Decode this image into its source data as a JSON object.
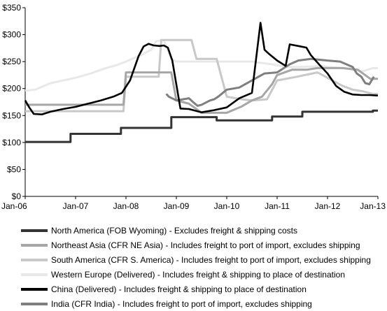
{
  "chart_data": {
    "type": "line",
    "title": "",
    "xlabel": "",
    "ylabel": "",
    "x_ticks": [
      "Jan-06",
      "Jan-07",
      "Jan-08",
      "Jan-09",
      "Jan-10",
      "Jan-11",
      "Jan-12",
      "Jan-13"
    ],
    "y_ticks": [
      "$0",
      "$50",
      "$100",
      "$150",
      "$200",
      "$250",
      "$300",
      "$350"
    ],
    "xlim": [
      2006.0,
      2013.0
    ],
    "ylim": [
      0,
      350
    ],
    "grid": false,
    "legend_position": "bottom",
    "x_unit_note": "x values are fractional years (2006.0 = Jan-06)",
    "series": [
      {
        "name": "North America (FOB Wyoming) - Excludes freight & shipping costs",
        "color": "#333333",
        "x": [
          2006.0,
          2006.9,
          2006.9,
          2007.9,
          2007.9,
          2008.9,
          2008.9,
          2009.8,
          2009.8,
          2010.9,
          2010.9,
          2011.5,
          2011.5,
          2012.9,
          2012.9,
          2013.0
        ],
        "y": [
          101,
          101,
          116,
          116,
          127,
          127,
          147,
          147,
          141,
          141,
          148,
          148,
          157,
          157,
          159,
          159
        ]
      },
      {
        "name": "Northeast Asia (CFR NE Asia) - Includes freight to port of import, excludes shipping",
        "color": "#a6a6a6",
        "x": [
          2006.0,
          2006.5,
          2007.0,
          2007.5,
          2007.95,
          2008.0,
          2008.3,
          2008.7,
          2008.9,
          2009.0,
          2009.25,
          2009.5,
          2009.75,
          2010.0,
          2010.3,
          2010.5,
          2010.7,
          2010.9,
          2011.0,
          2011.3,
          2011.6,
          2011.8,
          2012.0,
          2012.3,
          2012.6,
          2012.85,
          2013.0
        ],
        "y": [
          170,
          170,
          170,
          170,
          170,
          230,
          230,
          230,
          230,
          178,
          172,
          155,
          155,
          155,
          167,
          178,
          185,
          208,
          225,
          235,
          235,
          238,
          238,
          238,
          235,
          218,
          218
        ]
      },
      {
        "name": "South America (CFR S. America) - Includes freight to port of import, excludes shipping",
        "color": "#c8c8c8",
        "x": [
          2006.0,
          2006.5,
          2007.0,
          2007.5,
          2007.95,
          2008.0,
          2008.3,
          2008.65,
          2008.7,
          2008.9,
          2009.0,
          2009.3,
          2009.4,
          2009.6,
          2009.8,
          2010.0,
          2010.3,
          2010.5,
          2010.8,
          2011.0,
          2011.4,
          2011.8,
          2012.0,
          2012.3,
          2012.5,
          2012.7,
          2012.9,
          2013.0
        ],
        "y": [
          158,
          158,
          158,
          158,
          158,
          222,
          222,
          222,
          290,
          290,
          290,
          290,
          255,
          255,
          255,
          185,
          180,
          178,
          180,
          215,
          222,
          230,
          220,
          205,
          198,
          195,
          190,
          190
        ]
      },
      {
        "name": "Western Europe (Delivered) - Includes freight & shipping to place of destination",
        "color": "#e8e8e8",
        "x": [
          2006.0,
          2006.2,
          2006.5,
          2007.0,
          2007.3,
          2007.6,
          2007.8,
          2008.0,
          2008.3,
          2008.5,
          2008.6,
          2008.75,
          2008.9,
          2009.0,
          2009.2,
          2009.5,
          2009.8,
          2010.0,
          2010.5,
          2010.9,
          2011.2,
          2011.5,
          2011.9,
          2012.0,
          2012.3,
          2012.5,
          2012.7,
          2012.9,
          2013.0
        ],
        "y": [
          196,
          198,
          210,
          220,
          228,
          238,
          243,
          250,
          262,
          272,
          288,
          290,
          255,
          250,
          250,
          250,
          250,
          250,
          250,
          245,
          240,
          240,
          242,
          240,
          238,
          235,
          232,
          238,
          238
        ]
      },
      {
        "name": "China (Delivered) - Includes freight & shipping to place of destination",
        "color": "#000000",
        "x": [
          2006.0,
          2006.08,
          2006.17,
          2006.33,
          2006.5,
          2006.75,
          2007.0,
          2007.25,
          2007.5,
          2007.75,
          2007.92,
          2008.08,
          2008.25,
          2008.35,
          2008.45,
          2008.55,
          2008.67,
          2008.75,
          2008.83,
          2008.92,
          2009.08,
          2009.25,
          2009.5,
          2009.75,
          2010.0,
          2010.25,
          2010.5,
          2010.67,
          2010.75,
          2010.83,
          2011.0,
          2011.17,
          2011.25,
          2011.42,
          2011.58,
          2011.67,
          2011.83,
          2012.0,
          2012.17,
          2012.33,
          2012.5,
          2012.67,
          2012.83,
          2013.0
        ],
        "y": [
          178,
          165,
          153,
          152,
          157,
          162,
          166,
          172,
          178,
          185,
          192,
          215,
          260,
          278,
          283,
          280,
          279,
          280,
          276,
          252,
          163,
          162,
          156,
          160,
          165,
          182,
          192,
          322,
          272,
          265,
          252,
          242,
          282,
          279,
          276,
          262,
          245,
          228,
          205,
          194,
          189,
          188,
          188,
          187
        ]
      },
      {
        "name": "India (CFR India) - Includes freight to port of import, excludes shipping",
        "color": "#7f7f7f",
        "x": [
          2008.8,
          2008.85,
          2009.0,
          2009.25,
          2009.33,
          2009.42,
          2009.5,
          2009.67,
          2009.75,
          2009.83,
          2010.0,
          2010.25,
          2010.5,
          2010.75,
          2011.0,
          2011.25,
          2011.42,
          2011.67,
          2012.0,
          2012.25,
          2012.5,
          2012.58,
          2012.67,
          2012.75,
          2012.83,
          2012.92
        ],
        "y": [
          190,
          185,
          178,
          182,
          175,
          168,
          170,
          178,
          180,
          185,
          198,
          202,
          215,
          228,
          230,
          245,
          252,
          255,
          252,
          250,
          240,
          228,
          222,
          210,
          208,
          222
        ]
      }
    ]
  }
}
